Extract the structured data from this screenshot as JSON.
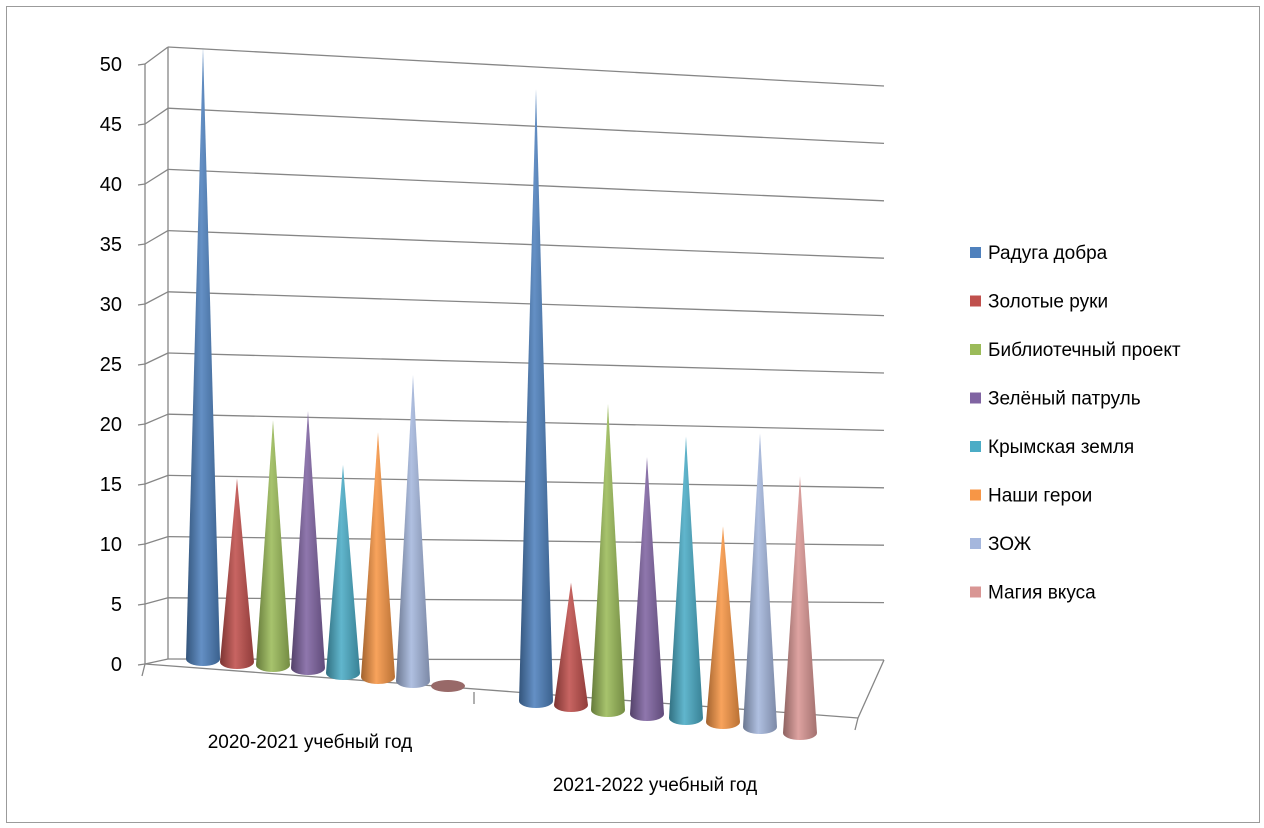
{
  "chart_data": {
    "type": "bar",
    "style": "3d-cone",
    "title": "",
    "xlabel": "",
    "ylabel": "",
    "ylim": [
      0,
      50
    ],
    "yticks": [
      0,
      5,
      10,
      15,
      20,
      25,
      30,
      35,
      40,
      45,
      50
    ],
    "grid": true,
    "legend_position": "right",
    "categories": [
      "2020-2021 учебный год",
      "2021-2022 учебный год"
    ],
    "series": [
      {
        "name": "Радуга добра",
        "color": "#4f81bd",
        "values": [
          50,
          50
        ]
      },
      {
        "name": "Золотые руки",
        "color": "#c0504d",
        "values": [
          15,
          10
        ]
      },
      {
        "name": "Библиотечный проект",
        "color": "#9bbb59",
        "values": [
          20,
          25
        ]
      },
      {
        "name": "Зелёный патруль",
        "color": "#8064a2",
        "values": [
          21,
          21
        ]
      },
      {
        "name": "Крымская земля",
        "color": "#4bacc6",
        "values": [
          17,
          23
        ]
      },
      {
        "name": "Наши герои",
        "color": "#f79646",
        "values": [
          20,
          16
        ]
      },
      {
        "name": "ЗОЖ",
        "color": "#a5b7dd",
        "values": [
          25,
          24
        ]
      },
      {
        "name": "Магия вкуса",
        "color": "#d99694",
        "values": [
          0,
          21
        ]
      }
    ]
  }
}
